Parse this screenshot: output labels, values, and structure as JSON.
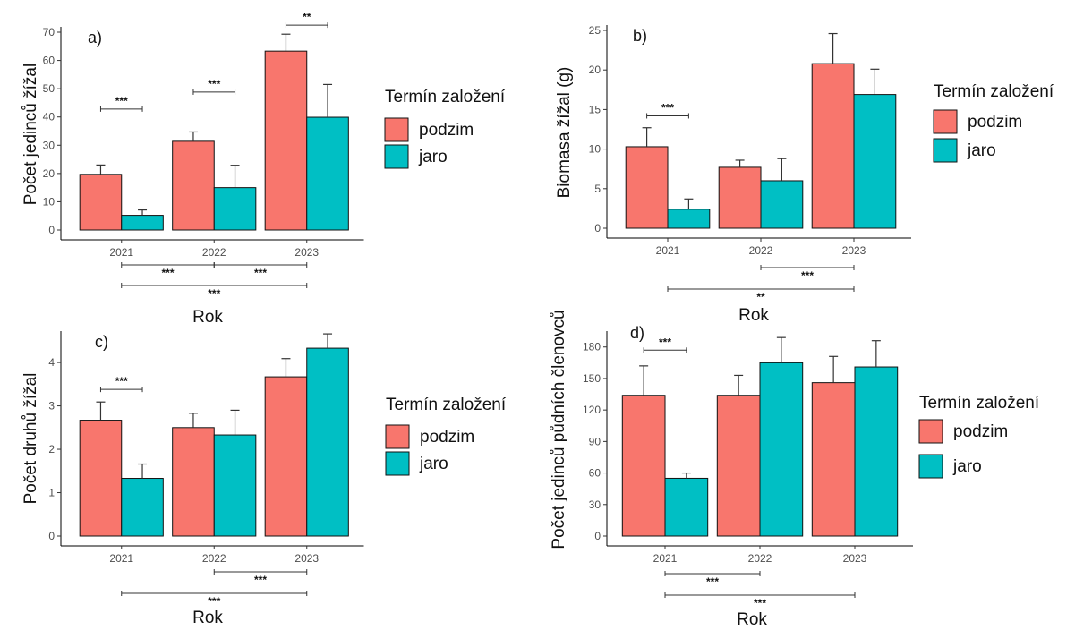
{
  "legend": {
    "title": "Termín založení",
    "items": [
      {
        "label": "podzim",
        "color": "#F8766D"
      },
      {
        "label": "jaro",
        "color": "#00BFC4"
      }
    ]
  },
  "chart_data": [
    {
      "type": "bar",
      "panel_label": "a)",
      "categories": [
        "2021",
        "2022",
        "2023"
      ],
      "xlabel": "Rok",
      "ylabel": "Počet jedinců žížal",
      "ylim": [
        0,
        70
      ],
      "yticks": [
        0,
        10,
        20,
        30,
        40,
        50,
        60,
        70
      ],
      "series": [
        {
          "name": "podzim",
          "values": [
            19.7,
            31.4,
            63.3
          ],
          "errors": [
            3.3,
            3.3,
            6.0
          ]
        },
        {
          "name": "jaro",
          "values": [
            5.2,
            15.0,
            39.9
          ],
          "errors": [
            1.9,
            7.9,
            11.6
          ]
        }
      ],
      "significance": [
        {
          "label": "***",
          "type": "within",
          "category": 0,
          "y": 42.8
        },
        {
          "label": "***",
          "type": "within",
          "category": 1,
          "y": 48.8
        },
        {
          "label": "**",
          "type": "within",
          "category": 2,
          "y": 72.5
        },
        {
          "label": "***",
          "type": "between",
          "from": 0,
          "to": 1,
          "row": 1
        },
        {
          "label": "***",
          "type": "between",
          "from": 1,
          "to": 2,
          "row": 1
        },
        {
          "label": "***",
          "type": "between",
          "from": 0,
          "to": 2,
          "row": 2
        }
      ]
    },
    {
      "type": "bar",
      "panel_label": "b)",
      "categories": [
        "2021",
        "2022",
        "2023"
      ],
      "xlabel": "Rok",
      "ylabel": "Biomasa žížal (g)",
      "ylim": [
        0,
        25
      ],
      "yticks": [
        0,
        5,
        10,
        15,
        20,
        25
      ],
      "series": [
        {
          "name": "podzim",
          "values": [
            10.3,
            7.7,
            20.8
          ],
          "errors": [
            2.4,
            0.9,
            3.8
          ]
        },
        {
          "name": "jaro",
          "values": [
            2.4,
            6.0,
            16.9
          ],
          "errors": [
            1.3,
            2.8,
            3.2
          ]
        }
      ],
      "significance": [
        {
          "label": "***",
          "type": "within",
          "category": 0,
          "y": 14.2
        },
        {
          "label": "***",
          "type": "between",
          "from": 1,
          "to": 2,
          "row": 1
        },
        {
          "label": "**",
          "type": "between",
          "from": 0,
          "to": 2,
          "row": 2
        }
      ]
    },
    {
      "type": "bar",
      "panel_label": "c)",
      "categories": [
        "2021",
        "2022",
        "2023"
      ],
      "xlabel": "Rok",
      "ylabel": "Počet druhů žížal",
      "ylim": [
        0,
        4.6
      ],
      "yticks": [
        0,
        1,
        2,
        3,
        4
      ],
      "series": [
        {
          "name": "podzim",
          "values": [
            2.67,
            2.5,
            3.67
          ],
          "errors": [
            0.42,
            0.33,
            0.42
          ]
        },
        {
          "name": "jaro",
          "values": [
            1.33,
            2.33,
            4.33
          ],
          "errors": [
            0.33,
            0.57,
            0.33
          ]
        }
      ],
      "significance": [
        {
          "label": "***",
          "type": "within",
          "category": 0,
          "y": 3.38
        },
        {
          "label": "***",
          "type": "between",
          "from": 1,
          "to": 2,
          "row": 1
        },
        {
          "label": "***",
          "type": "between",
          "from": 0,
          "to": 2,
          "row": 2
        }
      ]
    },
    {
      "type": "bar",
      "panel_label": "d)",
      "categories": [
        "2021",
        "2022",
        "2023"
      ],
      "xlabel": "Rok",
      "ylabel": "Počet jedinců půdních členovců",
      "ylim": [
        0,
        190
      ],
      "yticks": [
        0,
        30,
        60,
        90,
        120,
        150,
        180
      ],
      "series": [
        {
          "name": "podzim",
          "values": [
            134,
            134,
            146
          ],
          "errors": [
            28,
            19,
            25
          ]
        },
        {
          "name": "jaro",
          "values": [
            55,
            165,
            161
          ],
          "errors": [
            5,
            24,
            25
          ]
        }
      ],
      "significance": [
        {
          "label": "***",
          "type": "within",
          "category": 0,
          "y": 177
        },
        {
          "label": "***",
          "type": "between",
          "from": 0,
          "to": 1,
          "row": 1
        },
        {
          "label": "***",
          "type": "between",
          "from": 0,
          "to": 2,
          "row": 2
        }
      ]
    }
  ]
}
